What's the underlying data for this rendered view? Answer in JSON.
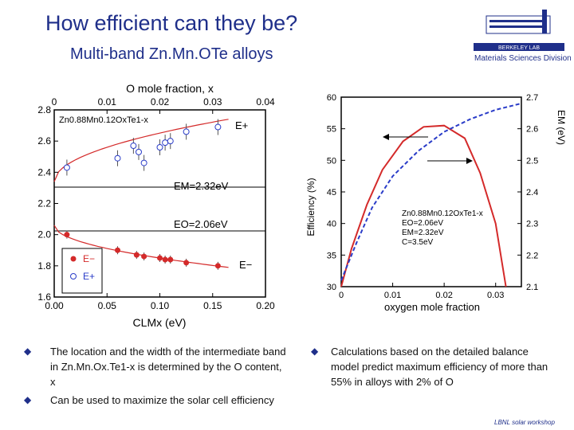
{
  "header": {
    "title": "How efficient can they be?",
    "subtitle": "Multi-band Zn.Mn.OTe alloys",
    "logo_text": "Materials Sciences Division",
    "logo_small": "BERKELEY LAB"
  },
  "bullets_left": [
    "The location and the width of the intermediate band in Zn.Mn.Ox.Te1-x is determined by the O content, x",
    "Can be used to maximize the solar cell efficiency"
  ],
  "bullets_right": [
    "Calculations based on the detailed balance model predict maximum efficiency of more than 55% in alloys with 2% of O"
  ],
  "footer": "LBNL solar workshop",
  "colors": {
    "title": "#1f2f8a",
    "red": "#d42a2a",
    "blue": "#2a3cc8"
  },
  "chart_data": [
    {
      "type": "scatter",
      "title": "O mole fraction, x",
      "xlabel": "CLMx (eV)",
      "ylabel": "",
      "xlim": [
        0,
        0.2
      ],
      "ylim": [
        1.6,
        2.8
      ],
      "xticks": [
        "0.00",
        "0.05",
        "0.10",
        "0.15",
        "0.20"
      ],
      "yticks": [
        "1.6",
        "1.8",
        "2.0",
        "2.2",
        "2.4",
        "2.6",
        "2.8"
      ],
      "top_ticks": [
        "0",
        "0.01",
        "0.02",
        "0.03",
        "0.04"
      ],
      "compound_label": "Zn0.88Mn0.12OxTe1-x",
      "annotations": {
        "em": "EM=2.32eV",
        "eo": "EO=2.06eV",
        "eplus": "E+",
        "eminus": "E−"
      },
      "legend": [
        "E−",
        "E+"
      ],
      "series": [
        {
          "name": "E+",
          "x": [
            0.012,
            0.06,
            0.075,
            0.08,
            0.085,
            0.1,
            0.105,
            0.11,
            0.125,
            0.155
          ],
          "y": [
            2.43,
            2.49,
            2.57,
            2.53,
            2.46,
            2.56,
            2.59,
            2.6,
            2.66,
            2.69
          ]
        },
        {
          "name": "E−",
          "x": [
            0.012,
            0.06,
            0.078,
            0.085,
            0.1,
            0.105,
            0.11,
            0.125,
            0.155
          ],
          "y": [
            2.0,
            1.9,
            1.87,
            1.86,
            1.85,
            1.84,
            1.84,
            1.82,
            1.8
          ]
        }
      ]
    },
    {
      "type": "line",
      "xlabel": "oxygen mole fraction",
      "ylabel_left": "Efficiency (%)",
      "ylabel_right": "EM (eV)",
      "xlim": [
        0,
        0.035
      ],
      "ylim": [
        30,
        60
      ],
      "ylim_right": [
        2.1,
        2.7
      ],
      "xticks": [
        "0",
        "0.01",
        "0.02",
        "0.03"
      ],
      "yticks_left": [
        "30",
        "35",
        "40",
        "45",
        "50",
        "55",
        "60"
      ],
      "yticks_right": [
        "2.1",
        "2.2",
        "2.3",
        "2.4",
        "2.5",
        "2.6",
        "2.7"
      ],
      "param_lines": [
        "Zn0.88Mn0.12OxTe1-x",
        "EO=2.06eV",
        "EM=2.32eV",
        "C=3.5eV"
      ],
      "series": [
        {
          "name": "efficiency",
          "x": [
            0.0,
            0.002,
            0.005,
            0.008,
            0.012,
            0.016,
            0.02,
            0.024,
            0.027,
            0.03,
            0.032
          ],
          "y": [
            30,
            36,
            43,
            48.5,
            53,
            55.3,
            55.5,
            53.5,
            48,
            40,
            30
          ]
        },
        {
          "name": "EM",
          "x": [
            0.0,
            0.003,
            0.006,
            0.01,
            0.015,
            0.02,
            0.025,
            0.03,
            0.035
          ],
          "y": [
            2.12,
            2.24,
            2.35,
            2.45,
            2.53,
            2.59,
            2.63,
            2.66,
            2.68
          ]
        }
      ]
    }
  ]
}
